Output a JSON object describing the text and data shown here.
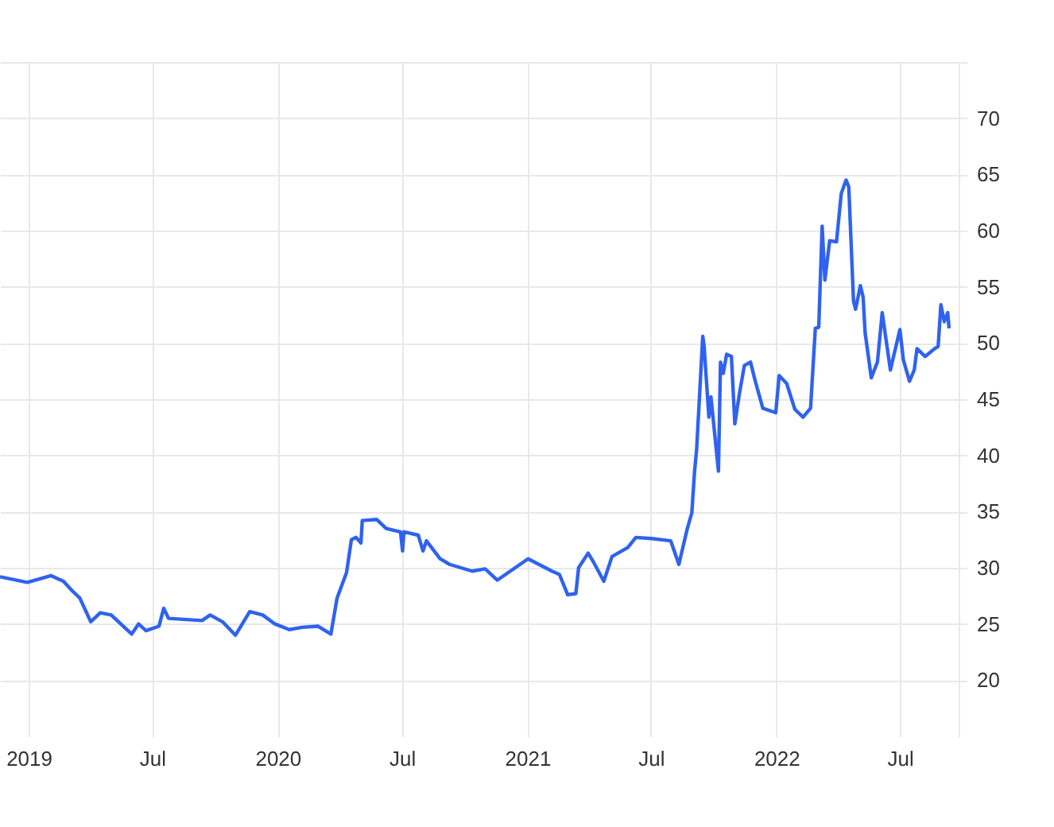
{
  "chart_data": {
    "type": "line",
    "x": [
      "2018-11-20",
      "2018-12-30",
      "2019-02-03",
      "2019-02-21",
      "2019-03-05",
      "2019-03-17",
      "2019-04-02",
      "2019-04-16",
      "2019-05-02",
      "2019-06-01",
      "2019-06-11",
      "2019-06-22",
      "2019-07-11",
      "2019-07-18",
      "2019-07-25",
      "2019-09-12",
      "2019-09-24",
      "2019-10-12",
      "2019-10-31",
      "2019-11-21",
      "2019-12-10",
      "2019-12-28",
      "2020-01-18",
      "2020-02-06",
      "2020-02-29",
      "2020-03-19",
      "2020-03-28",
      "2020-04-11",
      "2020-04-18",
      "2020-04-25",
      "2020-05-02",
      "2020-05-04",
      "2020-05-25",
      "2020-06-08",
      "2020-06-29",
      "2020-07-02",
      "2020-07-04",
      "2020-07-25",
      "2020-08-01",
      "2020-08-06",
      "2020-08-26",
      "2020-09-09",
      "2020-10-12",
      "2020-10-31",
      "2020-11-18",
      "2021-01-02",
      "2021-02-06",
      "2021-02-17",
      "2021-03-01",
      "2021-03-13",
      "2021-03-17",
      "2021-03-31",
      "2021-04-07",
      "2021-04-23",
      "2021-05-05",
      "2021-05-28",
      "2021-06-09",
      "2021-07-02",
      "2021-07-30",
      "2021-08-11",
      "2021-08-23",
      "2021-08-30",
      "2021-09-03",
      "2021-09-06",
      "2021-09-15",
      "2021-09-17",
      "2021-09-24",
      "2021-09-27",
      "2021-10-08",
      "2021-10-11",
      "2021-10-15",
      "2021-10-20",
      "2021-10-27",
      "2021-11-01",
      "2021-11-08",
      "2021-11-15",
      "2021-11-24",
      "2021-12-01",
      "2021-12-12",
      "2021-12-31",
      "2022-01-05",
      "2022-01-16",
      "2022-01-28",
      "2022-02-09",
      "2022-02-20",
      "2022-02-27",
      "2022-03-04",
      "2022-03-09",
      "2022-03-13",
      "2022-03-20",
      "2022-03-30",
      "2022-04-06",
      "2022-04-13",
      "2022-04-17",
      "2022-04-24",
      "2022-04-27",
      "2022-05-04",
      "2022-05-08",
      "2022-05-11",
      "2022-05-20",
      "2022-05-29",
      "2022-06-05",
      "2022-06-17",
      "2022-07-01",
      "2022-07-06",
      "2022-07-15",
      "2022-07-22",
      "2022-07-26",
      "2022-08-07",
      "2022-08-21",
      "2022-08-26",
      "2022-08-30",
      "2022-09-04",
      "2022-09-09",
      "2022-09-11"
    ],
    "series": [
      {
        "color": "#2f62f0",
        "values": [
          29.2,
          28.7,
          29.3,
          28.8,
          28.0,
          27.3,
          25.2,
          26.0,
          25.8,
          24.1,
          25.0,
          24.4,
          24.8,
          26.4,
          25.5,
          25.3,
          25.8,
          25.2,
          24.0,
          26.1,
          25.8,
          25.0,
          24.5,
          24.7,
          24.8,
          24.1,
          27.3,
          29.6,
          32.5,
          32.7,
          32.2,
          34.2,
          34.3,
          33.5,
          33.2,
          31.5,
          33.2,
          32.9,
          31.5,
          32.4,
          30.8,
          30.3,
          29.7,
          29.9,
          28.9,
          30.8,
          29.7,
          29.4,
          27.6,
          27.7,
          30.0,
          31.3,
          30.6,
          28.8,
          31.0,
          31.8,
          32.7,
          32.6,
          32.4,
          30.3,
          33.4,
          34.9,
          38.6,
          40.5,
          50.6,
          49.7,
          43.4,
          45.2,
          38.6,
          48.3,
          47.3,
          49.0,
          48.8,
          42.8,
          45.6,
          48.0,
          48.3,
          46.6,
          44.2,
          43.8,
          47.1,
          46.4,
          44.1,
          43.4,
          44.2,
          51.3,
          51.4,
          60.4,
          55.6,
          59.1,
          59.0,
          63.3,
          64.5,
          63.9,
          53.7,
          53.0,
          55.1,
          54.1,
          50.9,
          46.9,
          48.3,
          52.7,
          47.6,
          51.2,
          48.5,
          46.6,
          47.6,
          49.5,
          48.8,
          49.5,
          49.7,
          53.4,
          51.9,
          52.7,
          51.3
        ]
      }
    ],
    "xlim": [
      "2018-11-20",
      "2022-09-25"
    ],
    "xticks": [
      "2019",
      {
        "value": "2019-07",
        "label": "Jul"
      },
      "2020",
      {
        "value": "2020-07",
        "label": "Jul"
      },
      "2021",
      {
        "value": "2021-07",
        "label": "Jul"
      },
      "2022",
      {
        "value": "2022-07",
        "label": "Jul"
      }
    ],
    "ylim": [
      15,
      75
    ],
    "yticks": [
      20,
      25,
      30,
      35,
      40,
      45,
      50,
      55,
      60,
      65,
      70,
      {
        "value": 75,
        "label": null
      }
    ],
    "grid": true,
    "line_style": "solid",
    "marker": "none"
  }
}
